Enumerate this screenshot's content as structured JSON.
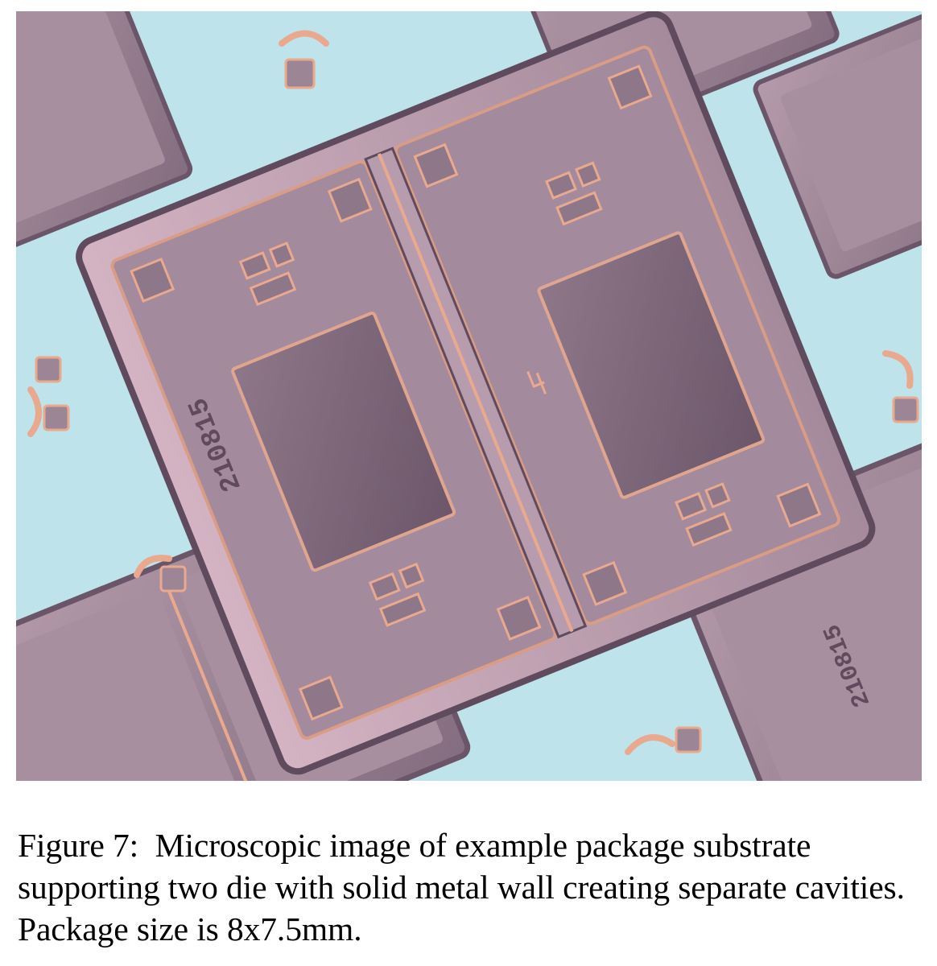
{
  "figure": {
    "image_description_icon": "microscope-photo-package-substrate",
    "palette": {
      "substrate": "#bfe3ea",
      "metal": "#9c8595",
      "metal_light": "#c9a9b8",
      "metal_dark": "#5f4a5e",
      "copper": "#e9a98f",
      "die": "#7d6678"
    },
    "marking_text": "210815"
  },
  "caption": {
    "label": "Figure 7:  ",
    "text": "Microscopic image of example package substrate supporting two die with solid metal wall creating separate cavities. Package size is 8x7.5mm."
  }
}
